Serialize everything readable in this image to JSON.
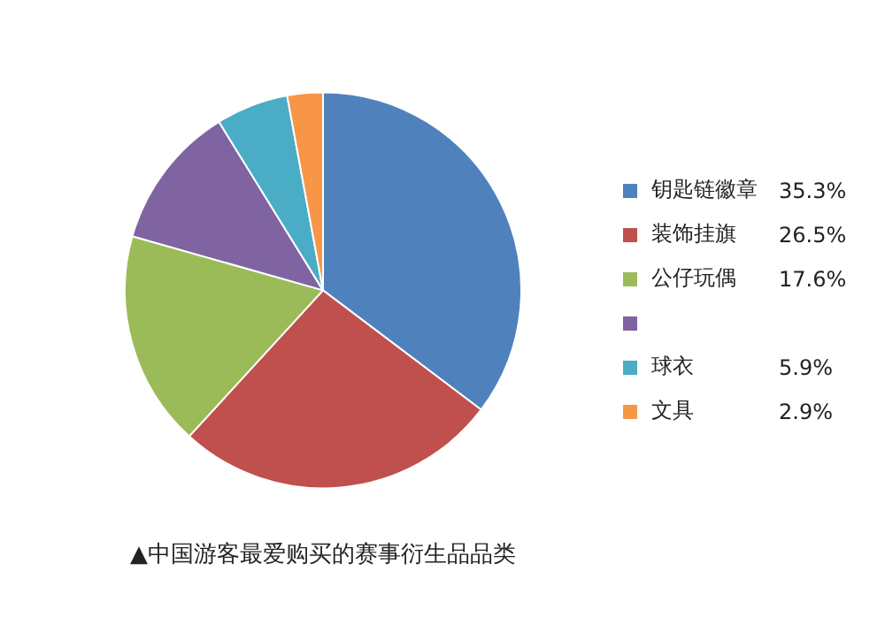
{
  "chart_data": {
    "type": "pie",
    "title": "▲中国游客最爱购买的赛事衍生品品类",
    "categories": [
      "钥匙链徽章",
      "装饰挂旗",
      "公仔玩偶",
      null,
      "球衣",
      "文具"
    ],
    "values": [
      35.3,
      26.5,
      17.6,
      11.8,
      5.9,
      2.9
    ],
    "value_labels": [
      "35.3%",
      "26.5%",
      "17.6%",
      null,
      "5.9%",
      "2.9%"
    ],
    "colors": [
      "#4f81bd",
      "#c0504d",
      "#9bbb59",
      "#8064a2",
      "#4bacc6",
      "#f79646"
    ],
    "legend": "right"
  }
}
